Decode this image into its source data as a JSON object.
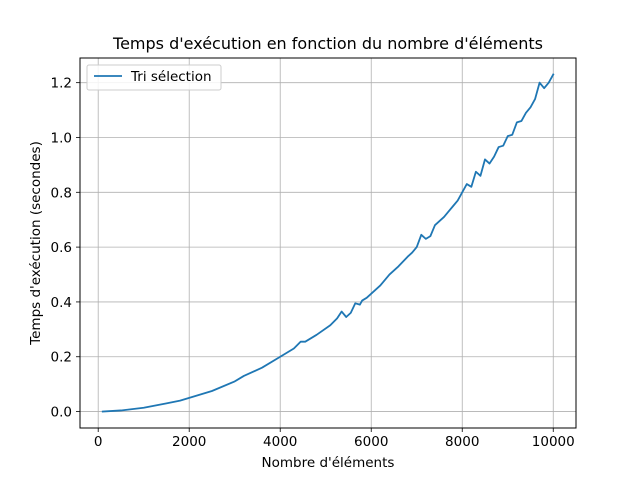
{
  "chart_data": {
    "type": "line",
    "title": "Temps d'exécution en fonction du nombre d'éléments",
    "xlabel": "Nombre d'éléments",
    "ylabel": "Temps d'exécution (secondes)",
    "xlim": [
      -400,
      10500
    ],
    "ylim": [
      -0.06,
      1.29
    ],
    "xticks": [
      0,
      2000,
      4000,
      6000,
      8000,
      10000
    ],
    "xtick_labels": [
      "0",
      "2000",
      "4000",
      "6000",
      "8000",
      "10000"
    ],
    "yticks": [
      0.0,
      0.2,
      0.4,
      0.6,
      0.8,
      1.0,
      1.2
    ],
    "ytick_labels": [
      "0.0",
      "0.2",
      "0.4",
      "0.6",
      "0.8",
      "1.0",
      "1.2"
    ],
    "grid": true,
    "legend_position": "upper left",
    "series": [
      {
        "name": "Tri sélection",
        "color": "#1f77b4",
        "x": [
          100,
          500,
          1000,
          1500,
          1800,
          2000,
          2500,
          3000,
          3200,
          3600,
          4000,
          4300,
          4450,
          4550,
          4800,
          5100,
          5250,
          5350,
          5450,
          5550,
          5650,
          5750,
          5800,
          5900,
          6100,
          6200,
          6400,
          6600,
          6800,
          6900,
          7000,
          7100,
          7200,
          7300,
          7400,
          7500,
          7600,
          7700,
          7800,
          7900,
          8000,
          8100,
          8200,
          8300,
          8400,
          8500,
          8600,
          8700,
          8800,
          8900,
          9000,
          9100,
          9200,
          9300,
          9400,
          9500,
          9600,
          9700,
          9800,
          9900,
          10000
        ],
        "values": [
          0.0,
          0.004,
          0.014,
          0.03,
          0.04,
          0.05,
          0.075,
          0.11,
          0.13,
          0.16,
          0.2,
          0.23,
          0.255,
          0.255,
          0.28,
          0.315,
          0.34,
          0.365,
          0.345,
          0.36,
          0.395,
          0.39,
          0.405,
          0.415,
          0.445,
          0.46,
          0.5,
          0.53,
          0.565,
          0.58,
          0.6,
          0.645,
          0.63,
          0.64,
          0.68,
          0.695,
          0.71,
          0.73,
          0.75,
          0.77,
          0.8,
          0.83,
          0.82,
          0.875,
          0.86,
          0.92,
          0.905,
          0.93,
          0.965,
          0.97,
          1.005,
          1.01,
          1.055,
          1.06,
          1.09,
          1.11,
          1.14,
          1.2,
          1.18,
          1.2,
          1.23
        ]
      }
    ]
  }
}
